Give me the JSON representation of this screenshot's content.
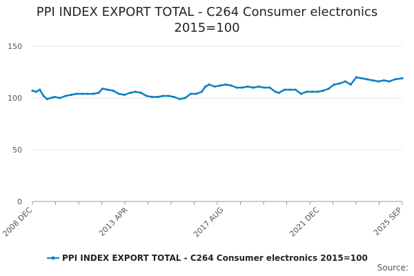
{
  "chart_data": {
    "type": "line",
    "title_line1": "PPI INDEX EXPORT TOTAL - C264 Consumer electronics",
    "title_line2": "2015=100",
    "xlabel": "",
    "ylabel": "",
    "ylim": [
      0,
      150
    ],
    "y_ticks": [
      "0",
      "50",
      "100",
      "150"
    ],
    "x_ticks": [
      "2008 DEC",
      "2013 APR",
      "2017 AUG",
      "2021 DEC",
      "2025 SEP"
    ],
    "grid": true,
    "legend_position": "bottom",
    "series": [
      {
        "name": "PPI INDEX EXPORT TOTAL - C264 Consumer electronics 2015=100",
        "color": "#0b7fbf",
        "points": [
          [
            "2008-12",
            107
          ],
          [
            "2009-02",
            106
          ],
          [
            "2009-04",
            108
          ],
          [
            "2009-06",
            102
          ],
          [
            "2009-08",
            99
          ],
          [
            "2009-10",
            100
          ],
          [
            "2009-12",
            101
          ],
          [
            "2010-03",
            100
          ],
          [
            "2010-06",
            102
          ],
          [
            "2010-09",
            103
          ],
          [
            "2010-12",
            104
          ],
          [
            "2011-03",
            104
          ],
          [
            "2011-06",
            104
          ],
          [
            "2011-09",
            104
          ],
          [
            "2011-12",
            105
          ],
          [
            "2012-02",
            109
          ],
          [
            "2012-05",
            108
          ],
          [
            "2012-08",
            107
          ],
          [
            "2012-11",
            104
          ],
          [
            "2013-02",
            103
          ],
          [
            "2013-05",
            105
          ],
          [
            "2013-08",
            106
          ],
          [
            "2013-11",
            105
          ],
          [
            "2014-02",
            102
          ],
          [
            "2014-05",
            101
          ],
          [
            "2014-08",
            101
          ],
          [
            "2014-11",
            102
          ],
          [
            "2015-02",
            102
          ],
          [
            "2015-05",
            101
          ],
          [
            "2015-08",
            99
          ],
          [
            "2015-11",
            100
          ],
          [
            "2016-02",
            104
          ],
          [
            "2016-05",
            104
          ],
          [
            "2016-08",
            106
          ],
          [
            "2016-10",
            111
          ],
          [
            "2016-12",
            113
          ],
          [
            "2017-03",
            111
          ],
          [
            "2017-06",
            112
          ],
          [
            "2017-09",
            113
          ],
          [
            "2017-12",
            112
          ],
          [
            "2018-03",
            110
          ],
          [
            "2018-06",
            110
          ],
          [
            "2018-09",
            111
          ],
          [
            "2018-12",
            110
          ],
          [
            "2019-03",
            111
          ],
          [
            "2019-06",
            110
          ],
          [
            "2019-09",
            110
          ],
          [
            "2019-12",
            106
          ],
          [
            "2020-02",
            105
          ],
          [
            "2020-05",
            108
          ],
          [
            "2020-08",
            108
          ],
          [
            "2020-11",
            108
          ],
          [
            "2021-02",
            104
          ],
          [
            "2021-05",
            106
          ],
          [
            "2021-08",
            106
          ],
          [
            "2021-11",
            106
          ],
          [
            "2022-02",
            107
          ],
          [
            "2022-05",
            109
          ],
          [
            "2022-08",
            113
          ],
          [
            "2022-11",
            114
          ],
          [
            "2023-02",
            116
          ],
          [
            "2023-05",
            113
          ],
          [
            "2023-08",
            120
          ],
          [
            "2023-11",
            119
          ],
          [
            "2024-02",
            118
          ],
          [
            "2024-05",
            117
          ],
          [
            "2024-08",
            116
          ],
          [
            "2024-11",
            117
          ],
          [
            "2025-02",
            116
          ],
          [
            "2025-05",
            118
          ],
          [
            "2025-09",
            119
          ]
        ]
      }
    ]
  },
  "source_label": "Source:"
}
